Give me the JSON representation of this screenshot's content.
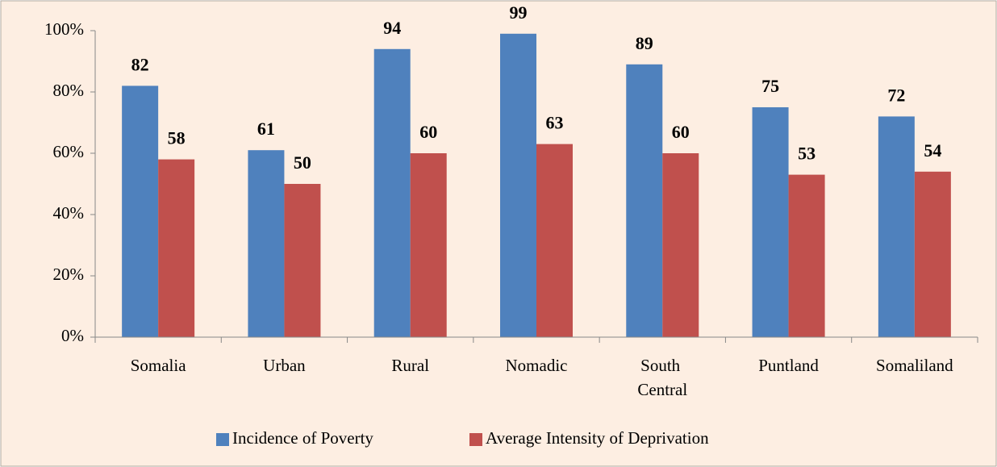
{
  "chart_data": {
    "type": "bar",
    "categories": [
      "Somalia",
      "Urban",
      "Rural",
      "Nomadic",
      "South Central",
      "Puntland",
      "Somaliland"
    ],
    "series": [
      {
        "name": "Incidence of Poverty",
        "color": "#4f81bd",
        "values": [
          82,
          61,
          94,
          99,
          89,
          75,
          72
        ]
      },
      {
        "name": "Average Intensity of Deprivation",
        "color": "#c0504d",
        "values": [
          58,
          50,
          60,
          63,
          60,
          53,
          54
        ]
      }
    ],
    "ylim": [
      0,
      100
    ],
    "yticks": [
      {
        "value": 0,
        "label": "0%"
      },
      {
        "value": 20,
        "label": "20%"
      },
      {
        "value": 40,
        "label": "40%"
      },
      {
        "value": 60,
        "label": "60%"
      },
      {
        "value": 80,
        "label": "80%"
      },
      {
        "value": 100,
        "label": "100%"
      }
    ],
    "legend": "bottom"
  }
}
